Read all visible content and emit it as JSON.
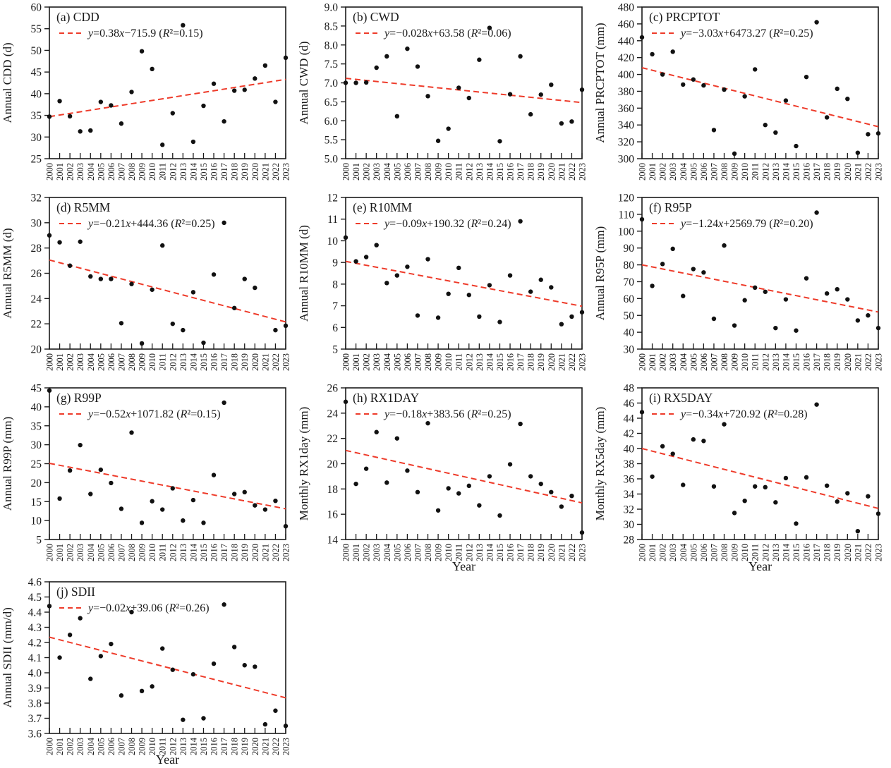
{
  "figure": {
    "x_axis_label": "Year",
    "years": [
      2000,
      2001,
      2002,
      2003,
      2004,
      2005,
      2006,
      2007,
      2008,
      2009,
      2010,
      2011,
      2012,
      2013,
      2014,
      2015,
      2016,
      2017,
      2018,
      2019,
      2020,
      2021,
      2022,
      2023
    ],
    "colors": {
      "trend": "#ee3b2a",
      "point": "#111111",
      "axis": "#1a1a1a",
      "background": "#ffffff"
    }
  },
  "chart_data": [
    {
      "type": "scatter",
      "panel": "a",
      "title": "(a) CDD",
      "ylabel": "Annual CDD (d)",
      "equation": "y=0.38x−715.9 (R²=0.15)",
      "ylim": [
        25,
        60
      ],
      "ytick_step": 5,
      "ydecimals": 0,
      "trend_start": 34.7,
      "trend_end": 43.3,
      "show_xlabel": false,
      "values": [
        34.7,
        38.3,
        34.8,
        31.3,
        31.5,
        38.1,
        37.3,
        33.1,
        40.4,
        49.8,
        45.7,
        28.2,
        35.5,
        55.8,
        28.9,
        37.2,
        42.3,
        33.6,
        40.7,
        40.9,
        43.5,
        46.5,
        38.1,
        48.3
      ]
    },
    {
      "type": "scatter",
      "panel": "b",
      "title": "(b) CWD",
      "ylabel": "Annual CWD (d)",
      "equation": "y=−0.028x+63.58 (R²=0.06)",
      "ylim": [
        5.0,
        9.0
      ],
      "ytick_step": 0.5,
      "ydecimals": 1,
      "trend_start": 7.12,
      "trend_end": 6.48,
      "show_xlabel": false,
      "values": [
        7.0,
        7.0,
        7.01,
        7.4,
        7.7,
        6.12,
        7.9,
        7.43,
        6.65,
        5.47,
        5.79,
        6.87,
        6.6,
        7.61,
        8.45,
        5.46,
        6.7,
        7.7,
        6.17,
        6.69,
        6.95,
        5.93,
        5.98,
        6.82
      ]
    },
    {
      "type": "scatter",
      "panel": "c",
      "title": "(c) PRCPTOT",
      "ylabel": "Annual PRCPTOT (mm)",
      "equation": "y=−3.03x+6473.27 (R²=0.25)",
      "ylim": [
        300,
        480
      ],
      "ytick_step": 20,
      "ydecimals": 0,
      "trend_start": 408,
      "trend_end": 338,
      "show_xlabel": false,
      "values": [
        444,
        424,
        400,
        427,
        388,
        394,
        387,
        334,
        382,
        306,
        374,
        406,
        340,
        331,
        369,
        315,
        397,
        462,
        349,
        383,
        371,
        307,
        329,
        330
      ]
    },
    {
      "type": "scatter",
      "panel": "d",
      "title": "(d) R5MM",
      "ylabel": "Annual R5MM (d)",
      "equation": "y=−0.21x+444.36 (R²=0.25)",
      "ylim": [
        20,
        32
      ],
      "ytick_step": 2,
      "ydecimals": 0,
      "trend_start": 27.05,
      "trend_end": 22.15,
      "show_xlabel": false,
      "values": [
        29.0,
        28.45,
        26.6,
        28.5,
        25.75,
        25.55,
        25.55,
        22.05,
        25.15,
        20.45,
        24.7,
        28.2,
        22.0,
        21.5,
        24.5,
        20.5,
        25.9,
        30.0,
        23.25,
        25.55,
        24.85,
        null,
        21.5,
        21.85
      ]
    },
    {
      "type": "scatter",
      "panel": "e",
      "title": "(e) R10MM",
      "ylabel": "Annual R10MM (d)",
      "equation": "y=−0.09x+190.32 (R²=0.24)",
      "ylim": [
        5,
        12
      ],
      "ytick_step": 1,
      "ydecimals": 0,
      "trend_start": 9.05,
      "trend_end": 6.98,
      "show_xlabel": false,
      "values": [
        10.15,
        9.05,
        9.25,
        9.8,
        8.05,
        8.4,
        8.8,
        6.55,
        9.15,
        6.45,
        7.55,
        8.75,
        7.5,
        6.5,
        7.95,
        6.25,
        8.4,
        10.9,
        7.65,
        8.2,
        7.85,
        6.15,
        6.5,
        6.7
      ]
    },
    {
      "type": "scatter",
      "panel": "f",
      "title": "(f) R95P",
      "ylabel": "Annual R95P (mm)",
      "equation": "y=−1.24x+2569.79 (R²=0.20)",
      "ylim": [
        30,
        120
      ],
      "ytick_step": 10,
      "ydecimals": 0,
      "trend_start": 80,
      "trend_end": 52,
      "show_xlabel": false,
      "values": [
        107,
        67.5,
        80.5,
        89.5,
        61.5,
        77.5,
        75.5,
        48,
        91.5,
        44,
        59,
        66.5,
        64,
        42.5,
        59.5,
        41,
        72,
        111,
        63,
        65.5,
        59.5,
        47,
        50,
        42.5
      ]
    },
    {
      "type": "scatter",
      "panel": "g",
      "title": "(g) R99P",
      "ylabel": "Annual R99P (mm)",
      "equation": "y=−0.52x+1071.82 (R²=0.15)",
      "ylim": [
        5,
        45
      ],
      "ytick_step": 5,
      "ydecimals": 0,
      "trend_start": 25.1,
      "trend_end": 13.1,
      "show_xlabel": false,
      "values": [
        44.3,
        15.8,
        23.2,
        29.9,
        17.0,
        23.4,
        19.9,
        13.1,
        33.2,
        9.4,
        15.1,
        12.9,
        18.5,
        10.0,
        15.4,
        9.4,
        22.0,
        41.1,
        17.0,
        17.5,
        14.0,
        12.9,
        15.2,
        8.5
      ]
    },
    {
      "type": "scatter",
      "panel": "h",
      "title": "(h) RX1DAY",
      "ylabel": "Monthly RX1day (mm)",
      "equation": "y=−0.18x+383.56 (R²=0.25)",
      "ylim": [
        14,
        26
      ],
      "ytick_step": 2,
      "ydecimals": 0,
      "trend_start": 21.05,
      "trend_end": 16.9,
      "show_xlabel": true,
      "values": [
        24.9,
        18.4,
        19.6,
        22.5,
        18.5,
        22.0,
        19.45,
        17.75,
        23.2,
        16.3,
        18.05,
        17.65,
        18.25,
        16.7,
        19.0,
        15.9,
        19.95,
        23.15,
        19.0,
        18.4,
        17.75,
        16.6,
        17.45,
        14.55
      ]
    },
    {
      "type": "scatter",
      "panel": "i",
      "title": "(i) RX5DAY",
      "ylabel": "Monthly RX5day (mm)",
      "equation": "y=−0.34x+720.92 (R²=0.28)",
      "ylim": [
        28,
        48
      ],
      "ytick_step": 2,
      "ydecimals": 0,
      "trend_start": 40.0,
      "trend_end": 32.1,
      "show_xlabel": true,
      "values": [
        44.8,
        36.3,
        40.3,
        39.3,
        35.2,
        41.2,
        41.0,
        35.0,
        43.2,
        31.5,
        33.1,
        35.0,
        34.9,
        32.9,
        36.1,
        30.1,
        36.2,
        45.8,
        35.1,
        33.0,
        34.1,
        29.1,
        33.7,
        31.4
      ]
    },
    {
      "type": "scatter",
      "panel": "j",
      "title": "(j) SDII",
      "ylabel": "Annual SDII (mm/d)",
      "equation": "y=−0.02x+39.06 (R²=0.26)",
      "ylim": [
        3.6,
        4.6
      ],
      "ytick_step": 0.1,
      "ydecimals": 1,
      "trend_start": 4.235,
      "trend_end": 3.835,
      "show_xlabel": true,
      "values": [
        4.44,
        4.1,
        4.25,
        4.36,
        3.96,
        4.11,
        4.19,
        3.85,
        4.4,
        3.88,
        3.91,
        4.16,
        4.02,
        3.69,
        3.99,
        3.7,
        4.06,
        4.45,
        4.17,
        4.05,
        4.04,
        3.66,
        3.75,
        3.65
      ]
    }
  ]
}
